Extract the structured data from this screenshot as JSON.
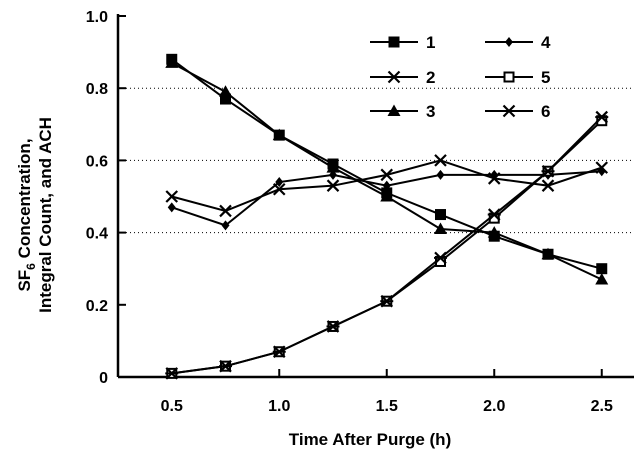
{
  "chart_data": {
    "type": "line",
    "xlabel": "Time After Purge (h)",
    "ylabel_line1": "SF",
    "ylabel_sub": "6",
    "ylabel_line1_rest": " Concentration,",
    "ylabel_line2": "Integral Count, and ACH",
    "xlim": [
      0.25,
      2.65
    ],
    "ylim": [
      0,
      1.0
    ],
    "xticks": [
      0.5,
      1.0,
      1.5,
      2.0,
      2.5
    ],
    "xtick_labels": [
      "0.5",
      "1.0",
      "1.5",
      "2.0",
      "2.5"
    ],
    "yticks": [
      0,
      0.2,
      0.4,
      0.6,
      0.8,
      1.0
    ],
    "ytick_labels": [
      "0",
      "0.2",
      "0.4",
      "0.6",
      "0.8",
      "1.0"
    ],
    "grid": "dotted horizontal at 0.4, 0.6, 0.8",
    "legend_position": "top-right",
    "x": [
      0.5,
      0.75,
      1.0,
      1.25,
      1.5,
      1.75,
      2.0,
      2.25,
      2.5
    ],
    "series": [
      {
        "name": "1",
        "marker": "filled-square",
        "values": [
          0.88,
          0.77,
          0.67,
          0.59,
          0.51,
          0.45,
          0.39,
          0.34,
          0.3
        ]
      },
      {
        "name": "2",
        "marker": "x",
        "values": [
          0.5,
          0.46,
          0.52,
          0.53,
          0.56,
          0.6,
          0.55,
          0.53,
          0.58
        ]
      },
      {
        "name": "3",
        "marker": "filled-triangle",
        "values": [
          0.87,
          0.79,
          0.67,
          0.58,
          0.5,
          0.41,
          0.4,
          0.34,
          0.27
        ]
      },
      {
        "name": "4",
        "marker": "filled-diamond",
        "values": [
          0.47,
          0.42,
          0.54,
          0.56,
          0.53,
          0.56,
          0.56,
          0.56,
          0.57
        ]
      },
      {
        "name": "5",
        "marker": "open-square",
        "values": [
          0.01,
          0.03,
          0.07,
          0.14,
          0.21,
          0.32,
          0.44,
          0.57,
          0.71
        ]
      },
      {
        "name": "6",
        "marker": "asterisk",
        "values": [
          0.01,
          0.03,
          0.07,
          0.14,
          0.21,
          0.33,
          0.45,
          0.57,
          0.72
        ]
      }
    ],
    "legend_order": [
      [
        "1",
        "4"
      ],
      [
        "2",
        "5"
      ],
      [
        "3",
        "6"
      ]
    ]
  }
}
